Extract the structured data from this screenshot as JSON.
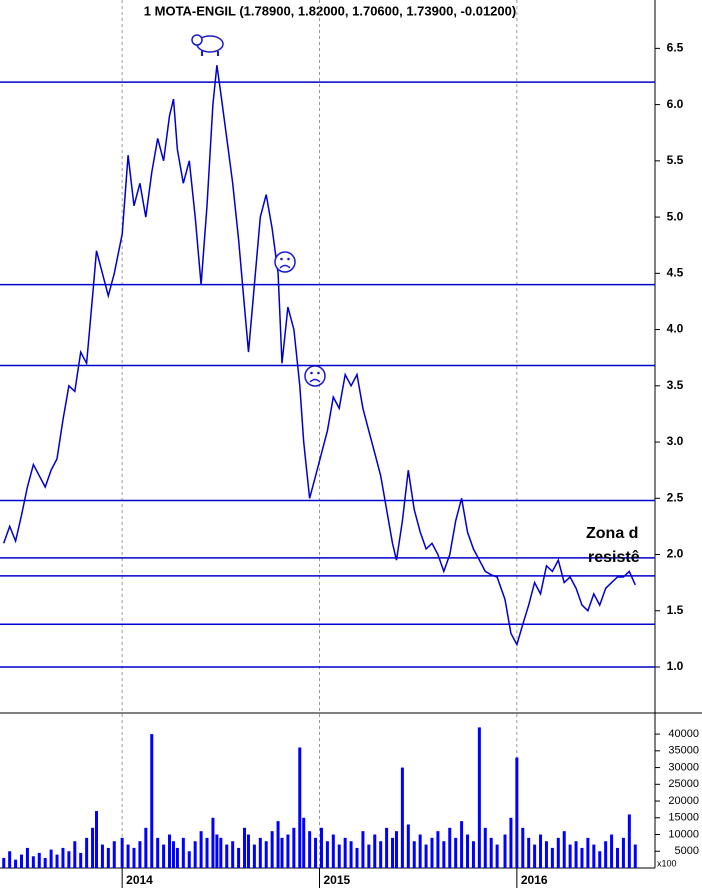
{
  "chart_data": [
    {
      "type": "line",
      "title": "1 MOTA-ENGIL (1.78900, 1.82000, 1.70600, 1.73900, -0.01200)",
      "annotations": [
        "Zona d",
        "resistê"
      ],
      "annotation_color": "#1a1acc",
      "color": "#0000cc",
      "hlines": [
        6.2,
        4.4,
        3.68,
        2.48,
        1.97,
        1.81,
        1.38,
        1.0
      ],
      "hline_color": "#0000cc",
      "xlim": [
        2013.381,
        2016.7
      ],
      "xticks": [
        2014,
        2015,
        2016
      ],
      "ylim": [
        0.6,
        6.93
      ],
      "yticks": [
        {
          "value": 1.0,
          "label": "1.0"
        },
        1.5,
        {
          "value": 2.0,
          "label": "2.0"
        },
        2.5,
        {
          "value": 3.0,
          "label": "3.0"
        },
        3.5,
        {
          "value": 4.0,
          "label": "4.0"
        },
        4.5,
        {
          "value": 5.0,
          "label": "5.0"
        },
        5.5,
        {
          "value": 6.0,
          "label": "6.0"
        },
        6.5
      ],
      "grid": true,
      "x": [
        2013.4,
        2013.43,
        2013.46,
        2013.49,
        2013.52,
        2013.55,
        2013.58,
        2013.61,
        2013.64,
        2013.67,
        2013.7,
        2013.73,
        2013.76,
        2013.79,
        2013.82,
        2013.85,
        2013.87,
        2013.9,
        2013.93,
        2013.96,
        2014.0,
        2014.03,
        2014.06,
        2014.09,
        2014.12,
        2014.15,
        2014.18,
        2014.21,
        2014.24,
        2014.26,
        2014.28,
        2014.31,
        2014.34,
        2014.37,
        2014.4,
        2014.43,
        2014.46,
        2014.48,
        2014.5,
        2014.53,
        2014.56,
        2014.59,
        2014.62,
        2014.64,
        2014.67,
        2014.7,
        2014.73,
        2014.76,
        2014.79,
        2014.81,
        2014.84,
        2014.87,
        2014.9,
        2014.92,
        2014.95,
        2014.98,
        2015.01,
        2015.04,
        2015.07,
        2015.1,
        2015.13,
        2015.16,
        2015.19,
        2015.22,
        2015.25,
        2015.28,
        2015.31,
        2015.34,
        2015.37,
        2015.39,
        2015.42,
        2015.45,
        2015.48,
        2015.51,
        2015.54,
        2015.57,
        2015.6,
        2015.63,
        2015.66,
        2015.69,
        2015.72,
        2015.75,
        2015.78,
        2015.81,
        2015.84,
        2015.87,
        2015.9,
        2015.94,
        2015.97,
        2016.0,
        2016.03,
        2016.06,
        2016.09,
        2016.12,
        2016.15,
        2016.18,
        2016.21,
        2016.24,
        2016.27,
        2016.3,
        2016.33,
        2016.36,
        2016.39,
        2016.42,
        2016.45,
        2016.48,
        2016.51,
        2016.54,
        2016.57,
        2016.6
      ],
      "values": [
        2.1,
        2.25,
        2.12,
        2.35,
        2.6,
        2.8,
        2.7,
        2.6,
        2.75,
        2.85,
        3.2,
        3.5,
        3.45,
        3.8,
        3.7,
        4.3,
        4.7,
        4.5,
        4.3,
        4.5,
        4.85,
        5.55,
        5.1,
        5.3,
        5.0,
        5.4,
        5.7,
        5.5,
        5.9,
        6.05,
        5.6,
        5.3,
        5.5,
        5.0,
        4.4,
        5.1,
        6.0,
        6.35,
        6.1,
        5.7,
        5.3,
        4.8,
        4.2,
        3.8,
        4.4,
        5.0,
        5.2,
        4.9,
        4.5,
        3.7,
        4.2,
        4.0,
        3.5,
        3.0,
        2.5,
        2.7,
        2.9,
        3.1,
        3.4,
        3.3,
        3.6,
        3.5,
        3.6,
        3.3,
        3.1,
        2.9,
        2.7,
        2.4,
        2.1,
        1.95,
        2.3,
        2.75,
        2.4,
        2.2,
        2.05,
        2.1,
        2.0,
        1.85,
        2.0,
        2.3,
        2.5,
        2.2,
        2.05,
        1.95,
        1.85,
        1.82,
        1.8,
        1.6,
        1.3,
        1.2,
        1.38,
        1.55,
        1.75,
        1.65,
        1.9,
        1.85,
        1.95,
        1.75,
        1.8,
        1.7,
        1.55,
        1.5,
        1.65,
        1.55,
        1.7,
        1.75,
        1.8,
        1.8,
        1.85,
        1.73
      ]
    },
    {
      "type": "bar",
      "y_unit_label": "x100",
      "color": "#0000ff",
      "xlim": [
        2013.381,
        2016.7
      ],
      "xticks": [
        2014,
        2015,
        2016
      ],
      "ylim": [
        0,
        46000
      ],
      "yticks": [
        5000,
        10000,
        15000,
        20000,
        25000,
        30000,
        35000,
        40000
      ],
      "grid": true,
      "x": [
        2013.4,
        2013.43,
        2013.46,
        2013.49,
        2013.52,
        2013.55,
        2013.58,
        2013.61,
        2013.64,
        2013.67,
        2013.7,
        2013.73,
        2013.76,
        2013.79,
        2013.82,
        2013.85,
        2013.87,
        2013.9,
        2013.93,
        2013.96,
        2014.0,
        2014.03,
        2014.06,
        2014.09,
        2014.12,
        2014.15,
        2014.18,
        2014.21,
        2014.24,
        2014.26,
        2014.28,
        2014.31,
        2014.34,
        2014.37,
        2014.4,
        2014.43,
        2014.46,
        2014.48,
        2014.5,
        2014.53,
        2014.56,
        2014.59,
        2014.62,
        2014.64,
        2014.67,
        2014.7,
        2014.73,
        2014.76,
        2014.79,
        2014.81,
        2014.84,
        2014.87,
        2014.9,
        2014.92,
        2014.95,
        2014.98,
        2015.01,
        2015.04,
        2015.07,
        2015.1,
        2015.13,
        2015.16,
        2015.19,
        2015.22,
        2015.25,
        2015.28,
        2015.31,
        2015.34,
        2015.37,
        2015.39,
        2015.42,
        2015.45,
        2015.48,
        2015.51,
        2015.54,
        2015.57,
        2015.6,
        2015.63,
        2015.66,
        2015.69,
        2015.72,
        2015.75,
        2015.78,
        2015.81,
        2015.84,
        2015.87,
        2015.9,
        2015.94,
        2015.97,
        2016.0,
        2016.03,
        2016.06,
        2016.09,
        2016.12,
        2016.15,
        2016.18,
        2016.21,
        2016.24,
        2016.27,
        2016.3,
        2016.33,
        2016.36,
        2016.39,
        2016.42,
        2016.45,
        2016.48,
        2016.51,
        2016.54,
        2016.57,
        2016.6
      ],
      "values": [
        3000,
        5000,
        2500,
        4000,
        6000,
        3500,
        4500,
        3000,
        5500,
        4000,
        6000,
        5000,
        8000,
        4500,
        9000,
        12000,
        17000,
        7000,
        6000,
        8000,
        9000,
        7000,
        6000,
        8000,
        12000,
        40000,
        9000,
        7000,
        10000,
        8000,
        6000,
        9000,
        5000,
        8000,
        11000,
        9000,
        15000,
        10000,
        9000,
        7000,
        8000,
        6000,
        12000,
        10000,
        7000,
        9000,
        8000,
        11000,
        14000,
        9000,
        10000,
        12000,
        36000,
        15000,
        11000,
        9000,
        12000,
        8000,
        10000,
        7000,
        9000,
        8000,
        6000,
        11000,
        7000,
        10000,
        8000,
        12000,
        9000,
        11000,
        30000,
        13000,
        8000,
        10000,
        7000,
        9000,
        11000,
        8000,
        12000,
        9000,
        14000,
        10000,
        8000,
        42000,
        12000,
        9000,
        7000,
        10000,
        15000,
        33000,
        12000,
        9000,
        7000,
        10000,
        8000,
        6000,
        9000,
        11000,
        7000,
        8000,
        6000,
        9000,
        7000,
        5000,
        8000,
        10000,
        6000,
        9000,
        16000,
        7000
      ]
    }
  ]
}
